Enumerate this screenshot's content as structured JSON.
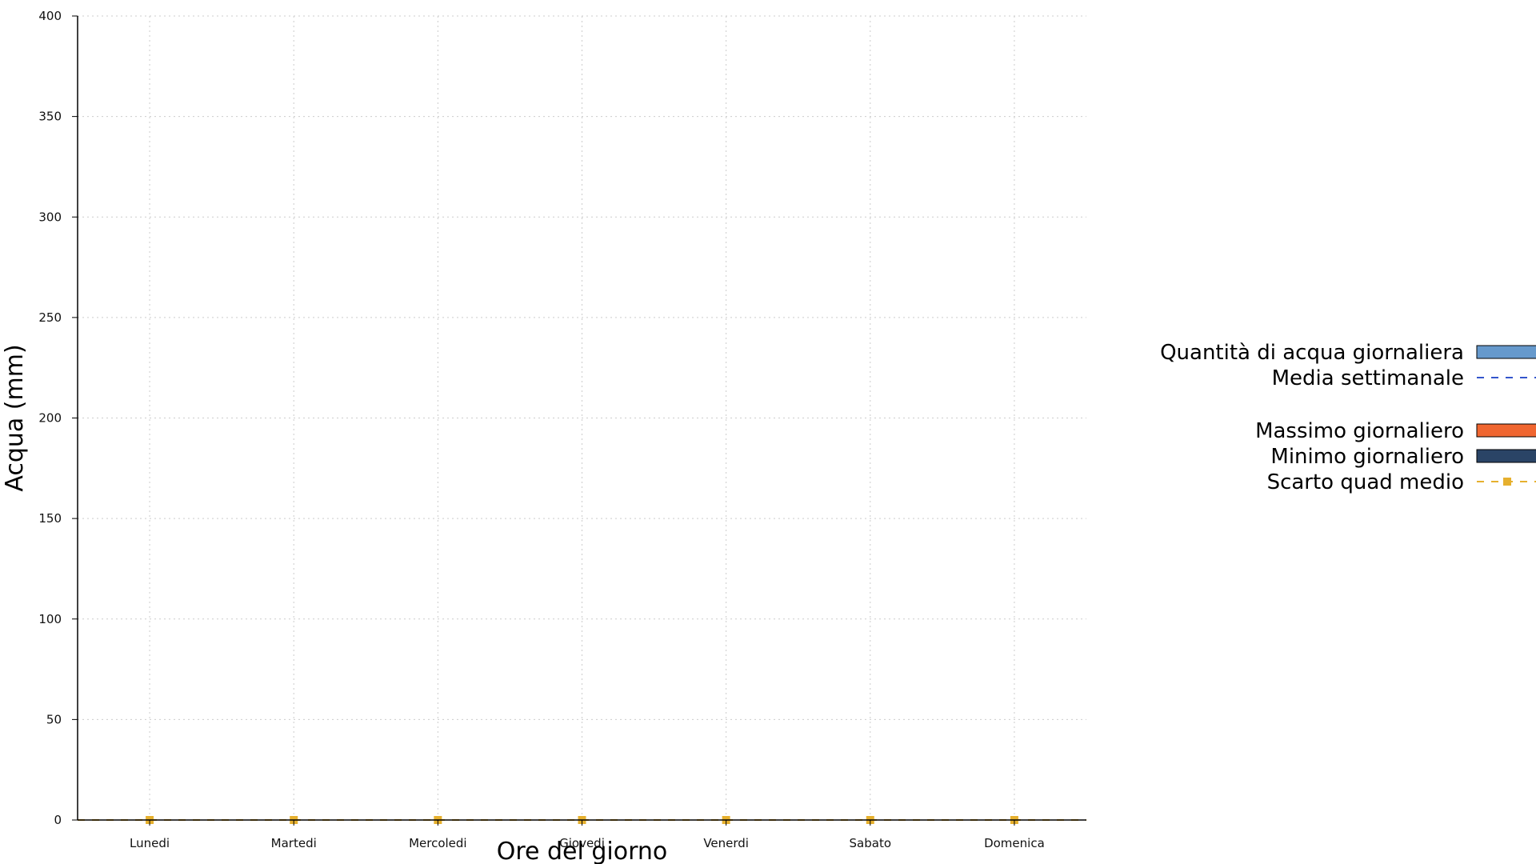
{
  "chart_data": {
    "type": "bar",
    "title": "",
    "xlabel": "Ore del giorno",
    "ylabel": "Acqua (mm)",
    "ylim": [
      0,
      400
    ],
    "yticks": [
      "0",
      "50",
      "100",
      "150",
      "200",
      "250",
      "300",
      "350",
      "400"
    ],
    "grid": true,
    "legend_position": "right",
    "categories": [
      "Lunedi",
      "Martedi",
      "Mercoledi",
      "Giovedi",
      "Venerdi",
      "Sabato",
      "Domenica"
    ],
    "series": [
      {
        "name": "Quantità di acqua giornaliera",
        "kind": "bar",
        "color": "#6699cc",
        "values": [
          0,
          0,
          0,
          0,
          0,
          0,
          0
        ]
      },
      {
        "name": "Media settimanale",
        "kind": "line-dashed",
        "color": "#3355cc",
        "values": [
          0,
          0,
          0,
          0,
          0,
          0,
          0
        ]
      },
      {
        "name": "Massimo giornaliero",
        "kind": "bar",
        "color": "#f06630",
        "values": [
          0,
          0,
          0,
          0,
          0,
          0,
          0
        ]
      },
      {
        "name": "Minimo giornaliero",
        "kind": "bar",
        "color": "#2a4466",
        "values": [
          0,
          0,
          0,
          0,
          0,
          0,
          0
        ]
      },
      {
        "name": "Scarto quad medio",
        "kind": "line-dashed-marker",
        "color": "#e6b02e",
        "values": [
          0,
          0,
          0,
          0,
          0,
          0,
          0
        ]
      }
    ]
  }
}
